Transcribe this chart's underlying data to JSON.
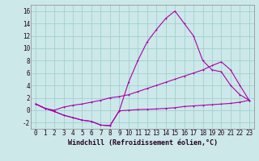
{
  "xlabel": "Windchill (Refroidissement éolien,°C)",
  "x": [
    0,
    1,
    2,
    3,
    4,
    5,
    6,
    7,
    8,
    9,
    10,
    11,
    12,
    13,
    14,
    15,
    16,
    17,
    18,
    19,
    20,
    21,
    22,
    23
  ],
  "line1": [
    1.0,
    0.3,
    -0.2,
    -0.8,
    -1.2,
    -1.6,
    -1.8,
    -2.4,
    -2.5,
    -0.1,
    0.0,
    0.1,
    0.15,
    0.2,
    0.3,
    0.4,
    0.6,
    0.7,
    0.8,
    0.9,
    1.0,
    1.1,
    1.3,
    1.6
  ],
  "line2": [
    1.0,
    0.3,
    -0.2,
    -0.8,
    -1.2,
    -1.6,
    -1.8,
    -2.4,
    -2.5,
    -0.1,
    4.5,
    8.0,
    11.0,
    13.0,
    14.8,
    16.0,
    14.0,
    12.0,
    8.0,
    6.5,
    6.2,
    4.0,
    2.5,
    1.6
  ],
  "line3": [
    1.0,
    0.3,
    0.0,
    0.5,
    0.8,
    1.0,
    1.3,
    1.6,
    2.0,
    2.2,
    2.5,
    3.0,
    3.5,
    4.0,
    4.5,
    5.0,
    5.5,
    6.0,
    6.5,
    7.2,
    7.8,
    6.5,
    4.0,
    1.6
  ],
  "line_color": "#aa00aa",
  "bg_color": "#cce8e8",
  "grid_color": "#99cccc",
  "ylim": [
    -3,
    17
  ],
  "yticks": [
    -2,
    0,
    2,
    4,
    6,
    8,
    10,
    12,
    14,
    16
  ],
  "xticks": [
    0,
    1,
    2,
    3,
    4,
    5,
    6,
    7,
    8,
    9,
    10,
    11,
    12,
    13,
    14,
    15,
    16,
    17,
    18,
    19,
    20,
    21,
    22,
    23
  ],
  "xlabel_fontsize": 6,
  "tick_fontsize": 5.5
}
